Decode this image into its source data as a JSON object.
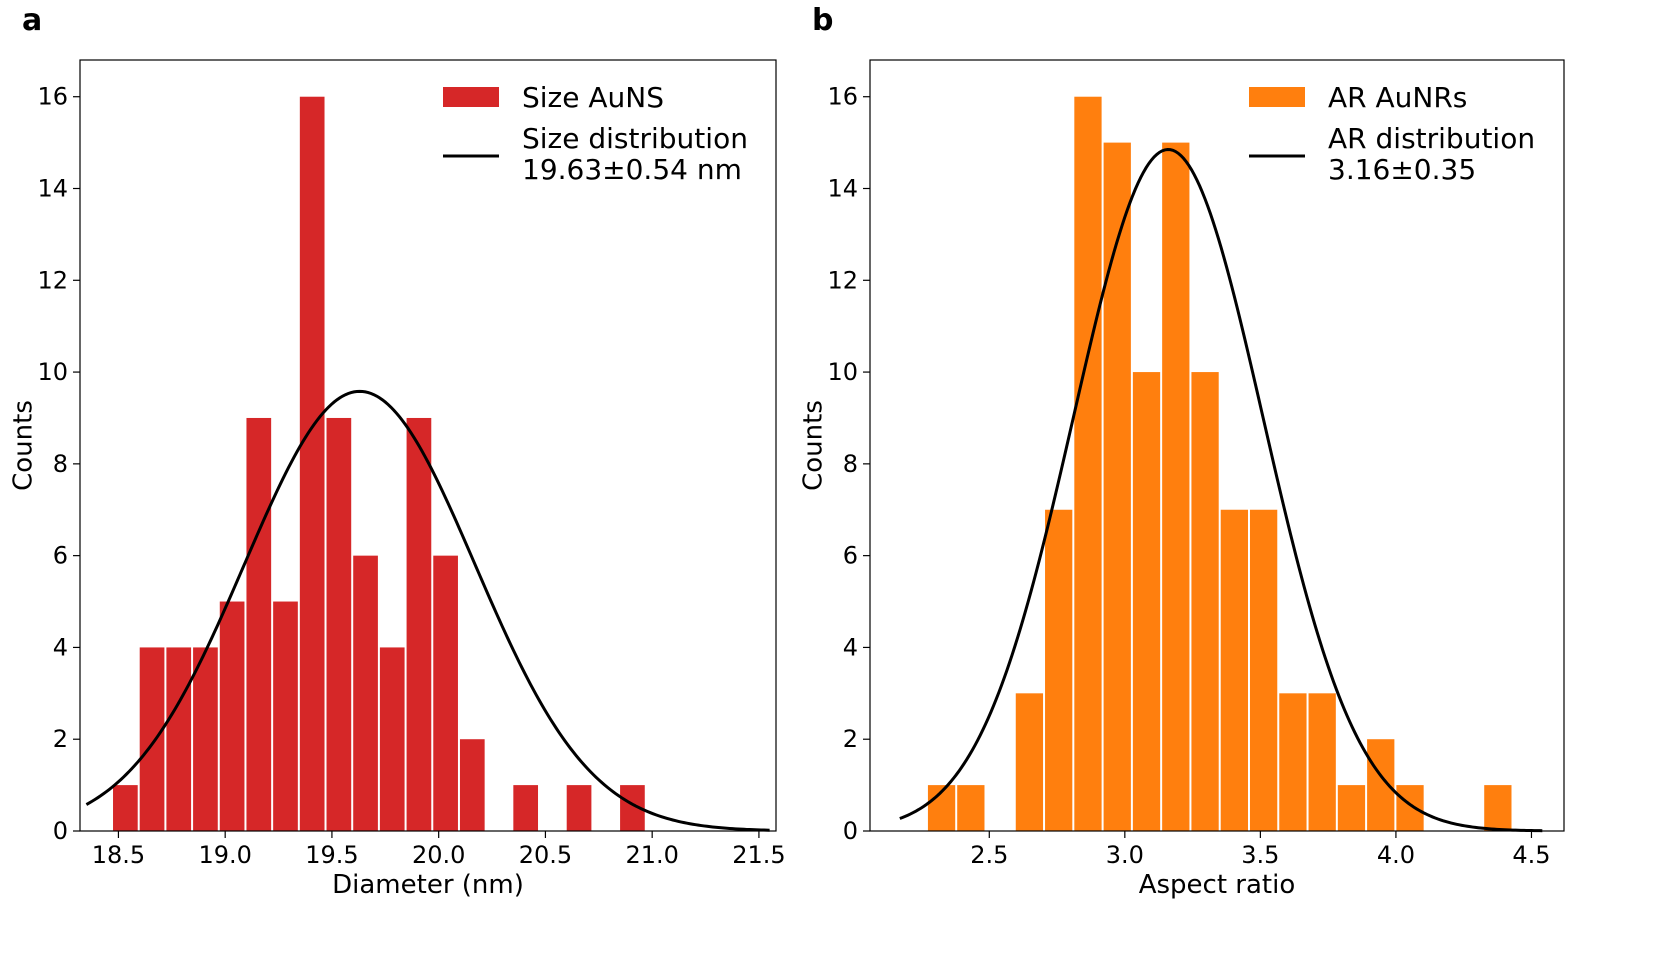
{
  "chart_data": [
    {
      "panel_label": "a",
      "type": "bar",
      "xlabel": "Diameter (nm)",
      "ylabel": "Counts",
      "xlim": [
        18.32,
        21.58
      ],
      "ylim": [
        0,
        16.8
      ],
      "xticks": [
        18.5,
        19.0,
        19.5,
        20.0,
        20.5,
        21.0,
        21.5
      ],
      "xtick_labels": [
        "18.5",
        "19.0",
        "19.5",
        "20.0",
        "20.5",
        "21.0",
        "21.5"
      ],
      "yticks": [
        0,
        2,
        4,
        6,
        8,
        10,
        12,
        14,
        16
      ],
      "ytick_labels": [
        "0",
        "2",
        "4",
        "6",
        "8",
        "10",
        "12",
        "14",
        "16"
      ],
      "bar_color": "#d62728",
      "bin_start": 18.47,
      "bin_width": 0.125,
      "bar_counts": [
        1,
        4,
        4,
        4,
        5,
        9,
        5,
        16,
        9,
        6,
        4,
        9,
        6,
        2,
        0,
        1,
        0,
        1,
        0,
        1
      ],
      "fit": {
        "mean": 19.63,
        "std": 0.54,
        "amplitude": 9.58,
        "x_from": 18.35,
        "x_to": 21.55,
        "color": "#000000"
      },
      "legend": {
        "position": "top-right",
        "entries": [
          {
            "type": "bar",
            "lines": [
              "Size AuNS"
            ]
          },
          {
            "type": "line",
            "lines": [
              "Size distribution",
              "19.63±0.54 nm"
            ]
          }
        ]
      }
    },
    {
      "panel_label": "b",
      "type": "bar",
      "xlabel": "Aspect ratio",
      "ylabel": "Counts",
      "xlim": [
        2.06,
        4.62
      ],
      "ylim": [
        0,
        16.8
      ],
      "xticks": [
        2.5,
        3.0,
        3.5,
        4.0,
        4.5
      ],
      "xtick_labels": [
        "2.5",
        "3.0",
        "3.5",
        "4.0",
        "4.5"
      ],
      "yticks": [
        0,
        2,
        4,
        6,
        8,
        10,
        12,
        14,
        16
      ],
      "ytick_labels": [
        "0",
        "2",
        "4",
        "6",
        "8",
        "10",
        "12",
        "14",
        "16"
      ],
      "bar_color": "#ff7f0e",
      "bin_start": 2.27,
      "bin_width": 0.108,
      "bar_counts": [
        1,
        1,
        0,
        3,
        7,
        16,
        15,
        10,
        15,
        10,
        7,
        7,
        3,
        3,
        1,
        2,
        1,
        0,
        0,
        1
      ],
      "fit": {
        "mean": 3.16,
        "std": 0.35,
        "amplitude": 14.85,
        "x_from": 2.17,
        "x_to": 4.54,
        "color": "#000000"
      },
      "legend": {
        "position": "top-right",
        "entries": [
          {
            "type": "bar",
            "lines": [
              "AR AuNRs"
            ]
          },
          {
            "type": "line",
            "lines": [
              "AR distribution",
              "3.16±0.35"
            ]
          }
        ]
      }
    }
  ]
}
